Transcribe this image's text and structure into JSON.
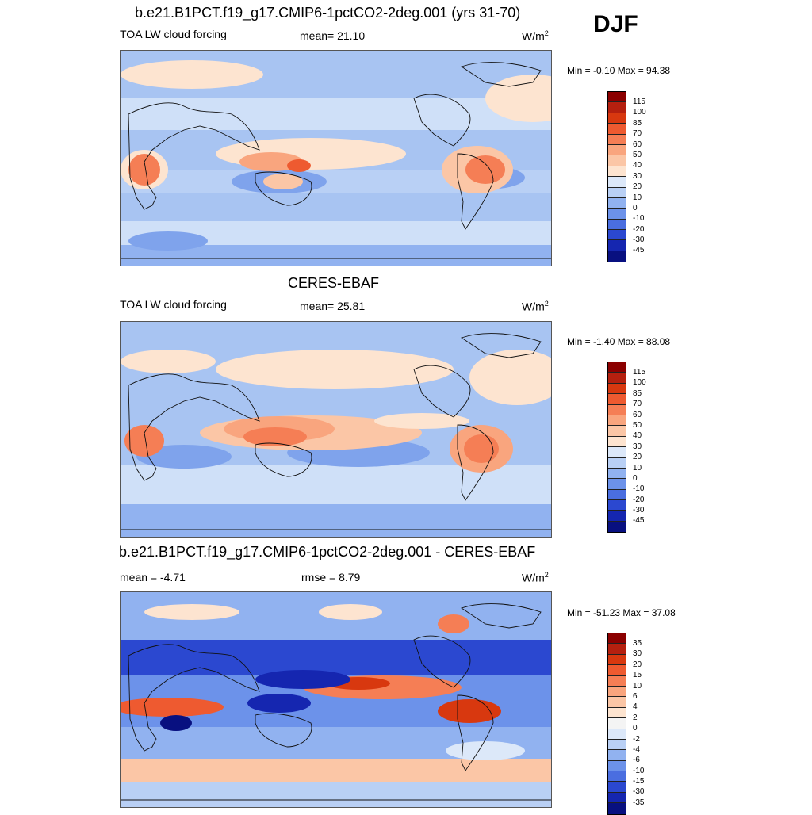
{
  "season": "DJF",
  "panels": [
    {
      "title": "b.e21.B1PCT.f19_g17.CMIP6-1pctCO2-2deg.001 (yrs 31-70)",
      "left_label": "TOA LW cloud forcing",
      "center_label": "mean=  21.10",
      "units": "W/m",
      "units_sup": "2",
      "minmax": "Min =  -0.10 Max =  94.38",
      "colorbar_labels": [
        "115",
        "100",
        "85",
        "70",
        "60",
        "50",
        "40",
        "30",
        "20",
        "10",
        "0",
        "-10",
        "-20",
        "-30",
        "-45"
      ]
    },
    {
      "title": "CERES-EBAF",
      "left_label": "TOA LW cloud forcing",
      "center_label": "mean=  25.81",
      "units": "W/m",
      "units_sup": "2",
      "minmax": "Min =  -1.40 Max =  88.08",
      "colorbar_labels": [
        "115",
        "100",
        "85",
        "70",
        "60",
        "50",
        "40",
        "30",
        "20",
        "10",
        "0",
        "-10",
        "-20",
        "-30",
        "-45"
      ]
    },
    {
      "title": "b.e21.B1PCT.f19_g17.CMIP6-1pctCO2-2deg.001 - CERES-EBAF",
      "left_label": "mean =  -4.71",
      "center_label": "rmse =   8.79",
      "units": "W/m",
      "units_sup": "2",
      "minmax": "Min = -51.23 Max =  37.08",
      "colorbar_labels": [
        "35",
        "30",
        "20",
        "15",
        "10",
        "6",
        "4",
        "2",
        "0",
        "-2",
        "-4",
        "-6",
        "-10",
        "-15",
        "-30",
        "-35"
      ]
    }
  ],
  "colors": {
    "scale16": [
      "#8b0000",
      "#b5200f",
      "#d8380f",
      "#ee5a30",
      "#f57e55",
      "#f9a57e",
      "#fbc6a6",
      "#fde4d0",
      "#dce8f9",
      "#b9d0f5",
      "#91b2f0",
      "#6c92ea",
      "#4a6ee0",
      "#2b48d0",
      "#1526b0",
      "#081080"
    ],
    "ocean_cool": "#cfe0f8",
    "ocean_mid": "#a8c4f2",
    "ocean_blue": "#7fa3ec",
    "warm_light": "#fde4d0",
    "warm_mid": "#f9a57e",
    "warm_strong": "#ee5a30",
    "diff_blue": "#2b48d0",
    "diff_deep": "#1526b0"
  }
}
